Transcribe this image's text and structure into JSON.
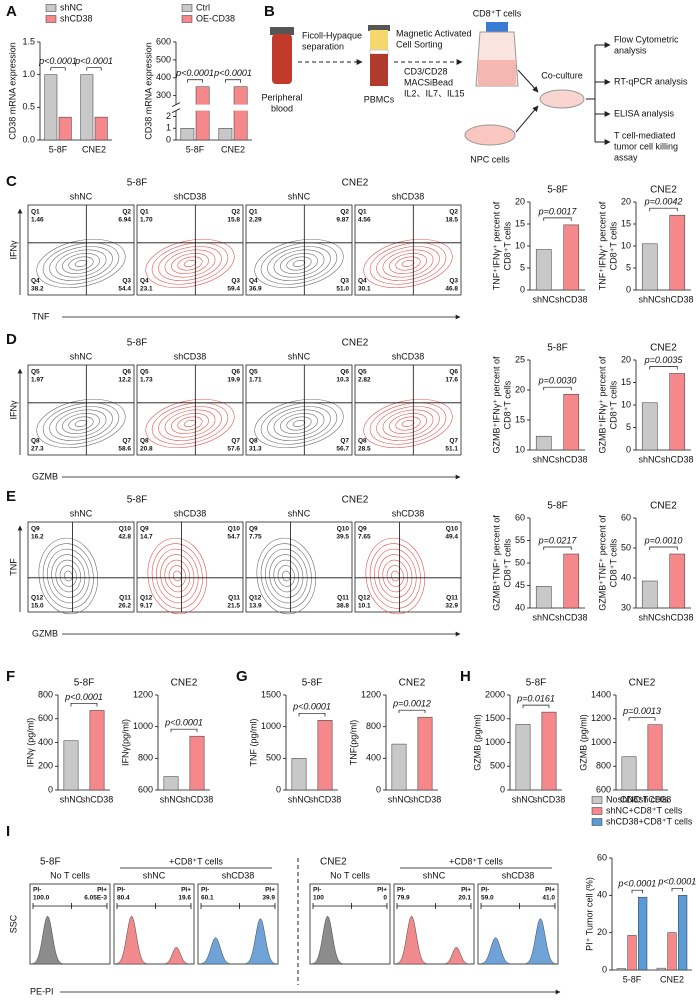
{
  "panel_labels": [
    "A",
    "B",
    "C",
    "D",
    "E",
    "F",
    "G",
    "H",
    "I"
  ],
  "chart_data": [
    {
      "type": "bar",
      "ylabel": [
        "CD38 mRNA expression"
      ],
      "categories": [
        "5-8F",
        "CNE2"
      ],
      "series": [
        {
          "name": "shNC",
          "color": "#c8c8c8",
          "values": [
            1,
            1
          ]
        },
        {
          "name": "shCD38",
          "color": "#f4888a",
          "values": [
            0.35,
            0.35
          ]
        }
      ],
      "ylim": [
        0,
        1.5
      ],
      "yticks": [
        {
          "value": 0,
          "label": "0.0"
        },
        0.5,
        {
          "value": 1,
          "label": "1.0"
        },
        1.5
      ],
      "annotations": [
        "p<0.0001",
        "p<0.0001"
      ]
    },
    {
      "type": "bar",
      "ylabel": [
        "CD38 mRNA expression"
      ],
      "categories": [
        "5-8F",
        "CNE2"
      ],
      "series": [
        {
          "name": "Ctrl",
          "color": "#c8c8c8",
          "values": [
            1,
            1
          ]
        },
        {
          "name": "OE-CD38",
          "color": "#f4888a",
          "values": [
            350,
            350
          ]
        }
      ],
      "ylim": [
        0,
        600
      ],
      "axis_break": [
        2.5,
        250
      ],
      "yticks": [
        0,
        1,
        2,
        300,
        400,
        500,
        600
      ],
      "annotations": [
        "p<0.0001",
        "p<0.0001"
      ]
    },
    {
      "type": "bar",
      "title": "5-8F",
      "ylabel": [
        "TNF⁺IFNγ⁺ percent of",
        "CD8⁺T cells"
      ],
      "categories": [
        "shNC",
        "shCD38"
      ],
      "values": [
        9.2,
        14.8
      ],
      "colors": [
        "#c8c8c8",
        "#f4888a"
      ],
      "ylim": [
        0,
        20
      ],
      "yticks": [
        0,
        5,
        10,
        15,
        20
      ],
      "annotation": "p=0.0017"
    },
    {
      "type": "bar",
      "title": "CNE2",
      "ylabel": [
        "TNF⁺IFNγ⁺ percent of",
        "CD8⁺T cells"
      ],
      "categories": [
        "shNC",
        "shCD38"
      ],
      "values": [
        10.5,
        17
      ],
      "colors": [
        "#c8c8c8",
        "#f4888a"
      ],
      "ylim": [
        0,
        20
      ],
      "yticks": [
        0,
        5,
        10,
        15,
        20
      ],
      "annotation": "p=0.0042"
    },
    {
      "type": "bar",
      "title": "5-8F",
      "ylabel": [
        "GZMB⁺IFNγ⁺ percent of",
        "CD8⁺T cells"
      ],
      "categories": [
        "shNC",
        "shCD38"
      ],
      "values": [
        12.3,
        19.3
      ],
      "colors": [
        "#c8c8c8",
        "#f4888a"
      ],
      "ylim": [
        10,
        25
      ],
      "yticks": [
        10,
        15,
        20,
        25
      ],
      "annotation": "p=0.0030"
    },
    {
      "type": "bar",
      "title": "CNE2",
      "ylabel": [
        "GZMB⁺IFNγ⁺ percent of",
        "CD8⁺T cells"
      ],
      "categories": [
        "shNC",
        "shCD38"
      ],
      "values": [
        10.5,
        17
      ],
      "colors": [
        "#c8c8c8",
        "#f4888a"
      ],
      "ylim": [
        0,
        20
      ],
      "yticks": [
        0,
        5,
        10,
        15,
        20
      ],
      "annotation": "p=0.0035"
    },
    {
      "type": "bar",
      "title": "5-8F",
      "ylabel": [
        "GZMB⁺TNF⁺ percent of",
        "CD8⁺T cells"
      ],
      "categories": [
        "shNC",
        "shCD38"
      ],
      "values": [
        44.8,
        52
      ],
      "colors": [
        "#c8c8c8",
        "#f4888a"
      ],
      "ylim": [
        40,
        60
      ],
      "yticks": [
        40,
        45,
        50,
        55,
        60
      ],
      "annotation": "p=0.0217"
    },
    {
      "type": "bar",
      "title": "CNE2",
      "ylabel": [
        "GZMB⁺TNF⁺ percent of",
        "CD8⁺T cells"
      ],
      "categories": [
        "shNC",
        "shCD38"
      ],
      "values": [
        39,
        48
      ],
      "colors": [
        "#c8c8c8",
        "#f4888a"
      ],
      "ylim": [
        30,
        60
      ],
      "yticks": [
        30,
        40,
        50,
        60
      ],
      "annotation": "p=0.0010"
    },
    {
      "type": "bar",
      "title": "5-8F",
      "ylabel": [
        "IFNγ (pg/ml)"
      ],
      "categories": [
        "shNC",
        "shCD38"
      ],
      "values": [
        415,
        670
      ],
      "colors": [
        "#c8c8c8",
        "#f4888a"
      ],
      "ylim": [
        0,
        800
      ],
      "yticks": [
        0,
        200,
        400,
        600,
        800
      ],
      "annotation": "p<0.0001"
    },
    {
      "type": "bar",
      "title": "CNE2",
      "ylabel": [
        "IFNγ(pg/ml)"
      ],
      "categories": [
        "shNC",
        "shCD38"
      ],
      "values": [
        685,
        940
      ],
      "colors": [
        "#c8c8c8",
        "#f4888a"
      ],
      "ylim": [
        600,
        1200
      ],
      "yticks": [
        600,
        800,
        1000,
        1200
      ],
      "annotation": "p<0.0001"
    },
    {
      "type": "bar",
      "title": "5-8F",
      "ylabel": [
        "TNF (pg/ml)"
      ],
      "categories": [
        "shNC",
        "shCD38"
      ],
      "values": [
        500,
        1100
      ],
      "colors": [
        "#c8c8c8",
        "#f4888a"
      ],
      "ylim": [
        0,
        1500
      ],
      "yticks": [
        0,
        500,
        1000,
        1500
      ],
      "annotation": "p<0.0001"
    },
    {
      "type": "bar",
      "title": "CNE2",
      "ylabel": [
        "TNF(pg/ml)"
      ],
      "categories": [
        "shNC",
        "shCD38"
      ],
      "values": [
        580,
        920
      ],
      "colors": [
        "#c8c8c8",
        "#f4888a"
      ],
      "ylim": [
        0,
        1200
      ],
      "yticks": [
        0,
        400,
        800,
        1200
      ],
      "annotation": "p=0.0012"
    },
    {
      "type": "bar",
      "title": "5-8F",
      "ylabel": [
        "GZMB (pg/ml)"
      ],
      "categories": [
        "shNC",
        "shCD38"
      ],
      "values": [
        1380,
        1640
      ],
      "colors": [
        "#c8c8c8",
        "#f4888a"
      ],
      "ylim": [
        0,
        2000
      ],
      "yticks": [
        0,
        500,
        1000,
        1500,
        2000
      ],
      "annotation": "p=0.0161"
    },
    {
      "type": "bar",
      "title": "CNE2",
      "ylabel": [
        "GZMB (pg/ml)"
      ],
      "categories": [
        "shNC",
        "shCD38"
      ],
      "values": [
        880,
        1150
      ],
      "colors": [
        "#c8c8c8",
        "#f4888a"
      ],
      "ylim": [
        600,
        1400
      ],
      "yticks": [
        600,
        800,
        1000,
        1200,
        1400
      ],
      "annotation": "p=0.0013"
    },
    {
      "type": "bar",
      "ylabel": [
        "PI⁺ Tumor cell (%)"
      ],
      "categories": [
        "5-8F",
        "CNE2"
      ],
      "series": [
        {
          "name": "No CD8⁺T cells",
          "color": "#c8c8c8",
          "values": [
            0.8,
            1
          ]
        },
        {
          "name": "shNC+CD8⁺T cells",
          "color": "#f4888a",
          "values": [
            18.5,
            20
          ]
        },
        {
          "name": "shCD38+CD8⁺T cells",
          "color": "#5b9bd5",
          "values": [
            39,
            40
          ]
        }
      ],
      "ylim": [
        0,
        60
      ],
      "yticks": [
        0,
        20,
        40,
        60
      ],
      "annotations": [
        "p<0.0001",
        "p<0.0001"
      ]
    }
  ],
  "diagram": {
    "blood": [
      "Peripheral",
      "blood"
    ],
    "separation": [
      "Ficoll-Hypaque",
      "separation"
    ],
    "pbmc": "PBMCs",
    "sorting": [
      "Magnetic Activated",
      "Cell Sorting"
    ],
    "stimulation": [
      "CD3/CD28",
      "MACSiBead",
      "IL2、IL7、IL15"
    ],
    "t_cells": "CD8⁺T cells",
    "npc": "NPC cells",
    "coculture": "Co-culture",
    "analyses": [
      [
        "Flow Cytometric",
        "analysis"
      ],
      [
        "RT-qPCR analysis"
      ],
      [
        "ELISA analysis"
      ],
      [
        "T cell-mediated",
        "tumor cell killing",
        "assay"
      ]
    ]
  },
  "flow_panels": [
    {
      "conditions": [
        "5-8F",
        "CNE2"
      ],
      "xlabel": "TNF",
      "ylabel": "IFNγ",
      "plots": [
        {
          "label": "shNC",
          "gates": [
            [
              "Q1",
              "1.46"
            ],
            [
              "Q2",
              "6.94"
            ],
            [
              "Q4",
              "38.2"
            ],
            [
              "Q3",
              "54.4"
            ]
          ]
        },
        {
          "label": "shCD38",
          "gates": [
            [
              "Q1",
              "1.70"
            ],
            [
              "Q2",
              "15.8"
            ],
            [
              "Q4",
              "23.1"
            ],
            [
              "Q3",
              "59.4"
            ]
          ]
        },
        {
          "label": "shNC",
          "gates": [
            [
              "Q1",
              "2.29"
            ],
            [
              "Q2",
              "9.87"
            ],
            [
              "Q4",
              "36.9"
            ],
            [
              "Q3",
              "51.0"
            ]
          ]
        },
        {
          "label": "shCD38",
          "gates": [
            [
              "Q1",
              "4.56"
            ],
            [
              "Q2",
              "18.5"
            ],
            [
              "Q4",
              "30.1"
            ],
            [
              "Q3",
              "46.8"
            ]
          ]
        }
      ]
    },
    {
      "conditions": [
        "5-8F",
        "CNE2"
      ],
      "xlabel": "GZMB",
      "ylabel": "IFNγ",
      "plots": [
        {
          "label": "shNC",
          "gates": [
            [
              "Q5",
              "1.97"
            ],
            [
              "Q6",
              "12.2"
            ],
            [
              "Q8",
              "27.3"
            ],
            [
              "Q7",
              "58.6"
            ]
          ]
        },
        {
          "label": "shCD38",
          "gates": [
            [
              "Q5",
              "1.73"
            ],
            [
              "Q6",
              "19.9"
            ],
            [
              "Q8",
              "20.8"
            ],
            [
              "Q7",
              "57.6"
            ]
          ]
        },
        {
          "label": "shNC",
          "gates": [
            [
              "Q5",
              "1.71"
            ],
            [
              "Q6",
              "10.3"
            ],
            [
              "Q8",
              "31.3"
            ],
            [
              "Q7",
              "56.7"
            ]
          ]
        },
        {
          "label": "shCD38",
          "gates": [
            [
              "Q5",
              "2.82"
            ],
            [
              "Q6",
              "17.6"
            ],
            [
              "Q8",
              "28.5"
            ],
            [
              "Q7",
              "51.1"
            ]
          ]
        }
      ]
    },
    {
      "conditions": [
        "5-8F",
        "CNE2"
      ],
      "xlabel": "GZMB",
      "ylabel": "TNF",
      "plots": [
        {
          "label": "shNC",
          "gates": [
            [
              "Q9",
              "16.2"
            ],
            [
              "Q10",
              "42.8"
            ],
            [
              "Q12",
              "15.0"
            ],
            [
              "Q11",
              "26.2"
            ]
          ]
        },
        {
          "label": "shCD38",
          "gates": [
            [
              "Q9",
              "14.7"
            ],
            [
              "Q10",
              "54.7"
            ],
            [
              "Q12",
              "9.17"
            ],
            [
              "Q11",
              "21.5"
            ]
          ]
        },
        {
          "label": "shNC",
          "gates": [
            [
              "Q9",
              "7.75"
            ],
            [
              "Q10",
              "39.5"
            ],
            [
              "Q12",
              "13.9"
            ],
            [
              "Q11",
              "38.8"
            ]
          ]
        },
        {
          "label": "shCD38",
          "gates": [
            [
              "Q9",
              "7.65"
            ],
            [
              "Q10",
              "49.4"
            ],
            [
              "Q12",
              "10.1"
            ],
            [
              "Q11",
              "32.9"
            ]
          ]
        }
      ]
    }
  ],
  "histograms": {
    "conditions": [
      "5-8F",
      "CNE2"
    ],
    "treated": "+CD8⁺T cells",
    "ylabel": "SSC",
    "xlabel": "PE-PI",
    "neg": "PI-",
    "pos": "PI+",
    "plots": [
      {
        "label": "No T cells",
        "neg_value": "100.0",
        "pos_value": "6.05E-3"
      },
      {
        "label": "shNC",
        "neg_value": "80.4",
        "pos_value": "19.6"
      },
      {
        "label": "shCD38",
        "neg_value": "60.1",
        "pos_value": "39.9"
      },
      {
        "label": "No T cells",
        "neg_value": "100",
        "pos_value": "0"
      },
      {
        "label": "shNC",
        "neg_value": "79.9",
        "pos_value": "20.1"
      },
      {
        "label": "shCD38",
        "neg_value": "59.0",
        "pos_value": "41.0"
      }
    ]
  }
}
